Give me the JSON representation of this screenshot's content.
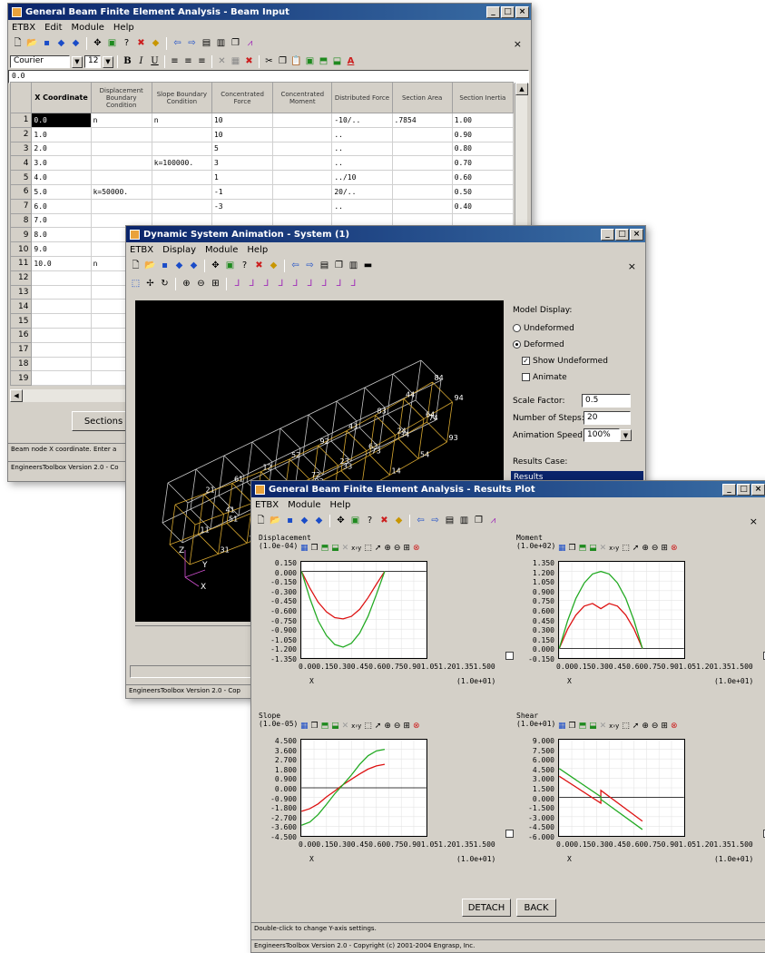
{
  "beam_input": {
    "title": "General Beam Finite Element Analysis - Beam Input",
    "menu": [
      "ETBX",
      "Edit",
      "Module",
      "Help"
    ],
    "font_name": "Courier",
    "font_size": "12",
    "formula_value": "0.0",
    "columns": [
      "X Coordinate",
      "Displacement Boundary Condition",
      "Slope Boundary Condition",
      "Concentrated Force",
      "Concentrated Moment",
      "Distributed Force",
      "Section Area",
      "Section Inertia"
    ],
    "rows": [
      {
        "n": "1",
        "x": "0.0",
        "disp": "n",
        "slope": "n",
        "force": "10",
        "moment": "",
        "dist": "-10/..",
        "area": ".7854",
        "inertia": "1.00"
      },
      {
        "n": "2",
        "x": "1.0",
        "disp": "",
        "slope": "",
        "force": "10",
        "moment": "",
        "dist": "..",
        "area": "",
        "inertia": "0.90"
      },
      {
        "n": "3",
        "x": "2.0",
        "disp": "",
        "slope": "",
        "force": "5",
        "moment": "",
        "dist": "..",
        "area": "",
        "inertia": "0.80"
      },
      {
        "n": "4",
        "x": "3.0",
        "disp": "",
        "slope": "k=100000.",
        "force": "3",
        "moment": "",
        "dist": "..",
        "area": "",
        "inertia": "0.70"
      },
      {
        "n": "5",
        "x": "4.0",
        "disp": "",
        "slope": "",
        "force": "1",
        "moment": "",
        "dist": "../10",
        "area": "",
        "inertia": "0.60"
      },
      {
        "n": "6",
        "x": "5.0",
        "disp": "k=50000.",
        "slope": "",
        "force": "-1",
        "moment": "",
        "dist": "20/..",
        "area": "",
        "inertia": "0.50"
      },
      {
        "n": "7",
        "x": "6.0",
        "disp": "",
        "slope": "",
        "force": "-3",
        "moment": "",
        "dist": "..",
        "area": "",
        "inertia": "0.40"
      },
      {
        "n": "8",
        "x": "7.0",
        "disp": "",
        "slope": "",
        "force": "",
        "moment": "",
        "dist": "",
        "area": "",
        "inertia": ""
      },
      {
        "n": "9",
        "x": "8.0",
        "disp": "",
        "slope": "",
        "force": "",
        "moment": "",
        "dist": "",
        "area": "",
        "inertia": ""
      },
      {
        "n": "10",
        "x": "9.0",
        "disp": "",
        "slope": "",
        "force": "",
        "moment": "",
        "dist": "",
        "area": "",
        "inertia": ""
      },
      {
        "n": "11",
        "x": "10.0",
        "disp": "n",
        "slope": "",
        "force": "",
        "moment": "",
        "dist": "",
        "area": "",
        "inertia": ""
      },
      {
        "n": "12",
        "x": "",
        "disp": "",
        "slope": "",
        "force": "",
        "moment": "",
        "dist": "",
        "area": "",
        "inertia": ""
      },
      {
        "n": "13",
        "x": "",
        "disp": "",
        "slope": "",
        "force": "",
        "moment": "",
        "dist": "",
        "area": "",
        "inertia": ""
      },
      {
        "n": "14",
        "x": "",
        "disp": "",
        "slope": "",
        "force": "",
        "moment": "",
        "dist": "",
        "area": "",
        "inertia": ""
      },
      {
        "n": "15",
        "x": "",
        "disp": "",
        "slope": "",
        "force": "",
        "moment": "",
        "dist": "",
        "area": "",
        "inertia": ""
      },
      {
        "n": "16",
        "x": "",
        "disp": "",
        "slope": "",
        "force": "",
        "moment": "",
        "dist": "",
        "area": "",
        "inertia": ""
      },
      {
        "n": "17",
        "x": "",
        "disp": "",
        "slope": "",
        "force": "",
        "moment": "",
        "dist": "",
        "area": "",
        "inertia": ""
      },
      {
        "n": "18",
        "x": "",
        "disp": "",
        "slope": "",
        "force": "",
        "moment": "",
        "dist": "",
        "area": "",
        "inertia": ""
      },
      {
        "n": "19",
        "x": "",
        "disp": "",
        "slope": "",
        "force": "",
        "moment": "",
        "dist": "",
        "area": "",
        "inertia": ""
      }
    ],
    "sections_button": "Sections",
    "hint": "Beam node X coordinate. Enter a",
    "status": "EngineersToolbox Version 2.0 - Co"
  },
  "animation": {
    "title": "Dynamic System Animation - System (1)",
    "menu": [
      "ETBX",
      "Display",
      "Module",
      "Help"
    ],
    "model_display_label": "Model Display:",
    "undeformed_label": "Undeformed",
    "deformed_label": "Deformed",
    "show_undeformed_label": "Show Undeformed",
    "animate_label": "Animate",
    "scale_factor_label": "Scale Factor:",
    "scale_factor_value": "0.5",
    "steps_label": "Number of Steps:",
    "steps_value": "20",
    "speed_label": "Animation Speed:",
    "speed_value": "100%",
    "results_case_label": "Results Case:",
    "results_item": "Results",
    "status": "EngineersToolbox Version 2.0 - Cop",
    "node_labels": [
      "94",
      "93",
      "84",
      "74",
      "64",
      "54",
      "44",
      "34",
      "24",
      "14",
      "83",
      "73",
      "63",
      "53",
      "43",
      "33",
      "23",
      "13",
      "92",
      "82",
      "72",
      "62",
      "52",
      "42",
      "32",
      "22",
      "12",
      "91",
      "81",
      "71",
      "61",
      "51",
      "41",
      "31",
      "21",
      "11"
    ],
    "axis_x": "X",
    "axis_y": "Y",
    "axis_z": "Z"
  },
  "results": {
    "title": "General Beam Finite Element Analysis - Results Plot",
    "menu": [
      "ETBX",
      "Module",
      "Help"
    ],
    "detach_button": "DETACH",
    "back_button": "BACK",
    "hint": "Double-click to change Y-axis settings.",
    "status": "EngineersToolbox Version 2.0 - Copyright (c) 2001-2004 Engrasp, Inc.",
    "x_tick_text": "0.000.150.300.450.600.750.901.051.201.351.500",
    "x_label": "X",
    "x_scale": "(1.0e+01)"
  },
  "chart_data": [
    {
      "type": "line",
      "title": "Displacement",
      "yscale": "(1.0e-04)",
      "yticks": [
        "0.150",
        "0.000",
        "-0.150",
        "-0.300",
        "-0.450",
        "-0.600",
        "-0.750",
        "-0.900",
        "-1.050",
        "-1.200",
        "-1.350"
      ],
      "ylim": [
        -1.35,
        0.15
      ],
      "xlim": [
        0,
        1.5
      ],
      "x": [
        0,
        0.1,
        0.2,
        0.3,
        0.4,
        0.5,
        0.6,
        0.7,
        0.8,
        0.9,
        1.0
      ],
      "series": [
        {
          "color": "#dd1111",
          "values": [
            0,
            -0.26,
            -0.48,
            -0.63,
            -0.72,
            -0.74,
            -0.7,
            -0.59,
            -0.41,
            -0.2,
            0
          ]
        },
        {
          "color": "#22aa22",
          "values": [
            0,
            -0.42,
            -0.77,
            -1.0,
            -1.14,
            -1.18,
            -1.12,
            -0.96,
            -0.7,
            -0.36,
            0
          ]
        }
      ]
    },
    {
      "type": "line",
      "title": "Moment",
      "yscale": "(1.0e+02)",
      "yticks": [
        "1.350",
        "1.200",
        "1.050",
        "0.900",
        "0.750",
        "0.600",
        "0.450",
        "0.300",
        "0.150",
        "0.000",
        "-0.150"
      ],
      "ylim": [
        -0.15,
        1.35
      ],
      "xlim": [
        0,
        1.5
      ],
      "x": [
        0,
        0.1,
        0.2,
        0.3,
        0.4,
        0.5,
        0.6,
        0.7,
        0.8,
        0.9,
        1.0
      ],
      "series": [
        {
          "color": "#dd1111",
          "values": [
            0,
            0.3,
            0.52,
            0.66,
            0.7,
            0.62,
            0.7,
            0.66,
            0.52,
            0.3,
            0
          ]
        },
        {
          "color": "#22aa22",
          "values": [
            0,
            0.43,
            0.78,
            1.02,
            1.16,
            1.2,
            1.16,
            1.02,
            0.78,
            0.43,
            0
          ]
        }
      ]
    },
    {
      "type": "line",
      "title": "Slope",
      "yscale": "(1.0e-05)",
      "yticks": [
        "4.500",
        "3.600",
        "2.700",
        "1.800",
        "0.900",
        "0.000",
        "-0.900",
        "-1.800",
        "-2.700",
        "-3.600",
        "-4.500"
      ],
      "ylim": [
        -4.5,
        4.5
      ],
      "xlim": [
        0,
        1.5
      ],
      "x": [
        0,
        0.1,
        0.2,
        0.3,
        0.4,
        0.5,
        0.6,
        0.7,
        0.8,
        0.9,
        1.0
      ],
      "series": [
        {
          "color": "#dd1111",
          "values": [
            -2.2,
            -1.95,
            -1.5,
            -0.85,
            -0.3,
            0.3,
            0.8,
            1.3,
            1.75,
            2.05,
            2.2
          ]
        },
        {
          "color": "#22aa22",
          "values": [
            -3.5,
            -3.2,
            -2.5,
            -1.55,
            -0.55,
            0.3,
            1.2,
            2.2,
            3.0,
            3.45,
            3.6
          ]
        }
      ]
    },
    {
      "type": "line",
      "title": "Shear",
      "yscale": "(1.0e+01)",
      "yticks": [
        "9.000",
        "7.500",
        "6.000",
        "4.500",
        "3.000",
        "1.500",
        "0.000",
        "-1.500",
        "-3.000",
        "-4.500",
        "-6.000"
      ],
      "ylim": [
        -6.0,
        9.0
      ],
      "xlim": [
        0,
        1.5
      ],
      "x": [
        0,
        0.5,
        0.5,
        1.0
      ],
      "series": [
        {
          "color": "#dd1111",
          "values": [
            3.3,
            -0.9,
            1.1,
            -3.7
          ]
        },
        {
          "color": "#22aa22",
          "values": [
            4.5,
            0.1,
            -0.3,
            -5.0
          ]
        }
      ]
    }
  ]
}
